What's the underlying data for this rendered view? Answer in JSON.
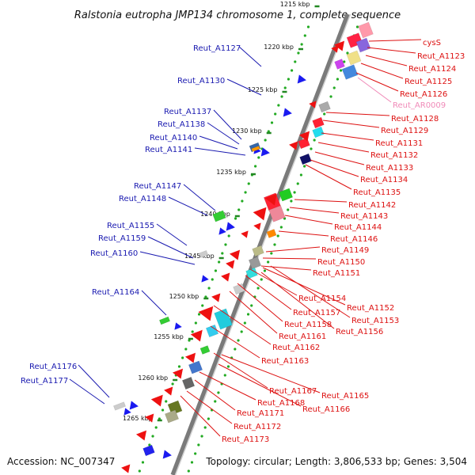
{
  "header": {
    "title": "Ralstonia eutropha JMP134 chromosome 1, complete sequence"
  },
  "footer": {
    "accession": "Accession: NC_007347",
    "topology": "Topology: circular; Length: 3,806,533 bp; Genes: 3,504"
  },
  "colors": {
    "left_label": "#1a1ab0",
    "right_label": "#dd1111",
    "rna_label": "#f08ab8",
    "backbone": "#7a7a7a",
    "tick_dots": "#22aa22",
    "kbp_tick": "#228822"
  },
  "scale": {
    "unit": "kbp",
    "ticks": [
      {
        "kbp": 1215,
        "label": "1215 kbp"
      },
      {
        "kbp": 1220,
        "label": "1220 kbp"
      },
      {
        "kbp": 1225,
        "label": "1225 kbp"
      },
      {
        "kbp": 1230,
        "label": "1230 kbp"
      },
      {
        "kbp": 1235,
        "label": "1235 kbp"
      },
      {
        "kbp": 1240,
        "label": "1240 kbp"
      },
      {
        "kbp": 1245,
        "label": "1245 kbp"
      },
      {
        "kbp": 1250,
        "label": "1250 kbp"
      },
      {
        "kbp": 1255,
        "label": "1255 kbp"
      },
      {
        "kbp": 1260,
        "label": "1260 kbp"
      },
      {
        "kbp": 1265,
        "label": "1265 kbp"
      }
    ]
  },
  "left_labels": [
    {
      "name": "Reut_A1127"
    },
    {
      "name": "Reut_A1130"
    },
    {
      "name": "Reut_A1137"
    },
    {
      "name": "Reut_A1138"
    },
    {
      "name": "Reut_A1140"
    },
    {
      "name": "Reut_A1141"
    },
    {
      "name": "Reut_A1147"
    },
    {
      "name": "Reut_A1148"
    },
    {
      "name": "Reut_A1155"
    },
    {
      "name": "Reut_A1159"
    },
    {
      "name": "Reut_A1160"
    },
    {
      "name": "Reut_A1164"
    },
    {
      "name": "Reut_A1176"
    },
    {
      "name": "Reut_A1177"
    }
  ],
  "right_labels": [
    {
      "name": "cysS"
    },
    {
      "name": "Reut_A1123"
    },
    {
      "name": "Reut_A1124"
    },
    {
      "name": "Reut_A1125"
    },
    {
      "name": "Reut_A1126"
    },
    {
      "name": "Reut_AR0009",
      "rna": true
    },
    {
      "name": "Reut_A1128"
    },
    {
      "name": "Reut_A1129"
    },
    {
      "name": "Reut_A1131"
    },
    {
      "name": "Reut_A1132"
    },
    {
      "name": "Reut_A1133"
    },
    {
      "name": "Reut_A1134"
    },
    {
      "name": "Reut_A1135"
    },
    {
      "name": "Reut_A1142"
    },
    {
      "name": "Reut_A1143"
    },
    {
      "name": "Reut_A1144"
    },
    {
      "name": "Reut_A1146"
    },
    {
      "name": "Reut_A1149"
    },
    {
      "name": "Reut_A1150"
    },
    {
      "name": "Reut_A1151"
    },
    {
      "name": "Reut_A1154"
    },
    {
      "name": "Reut_A1152"
    },
    {
      "name": "Reut_A1157"
    },
    {
      "name": "Reut_A1153"
    },
    {
      "name": "Reut_A1158"
    },
    {
      "name": "Reut_A1156"
    },
    {
      "name": "Reut_A1161"
    },
    {
      "name": "Reut_A1162"
    },
    {
      "name": "Reut_A1163"
    },
    {
      "name": "Reut_A1167"
    },
    {
      "name": "Reut_A1165"
    },
    {
      "name": "Reut_A1168"
    },
    {
      "name": "Reut_A1166"
    },
    {
      "name": "Reut_A1171"
    },
    {
      "name": "Reut_A1172"
    },
    {
      "name": "Reut_A1173"
    }
  ]
}
